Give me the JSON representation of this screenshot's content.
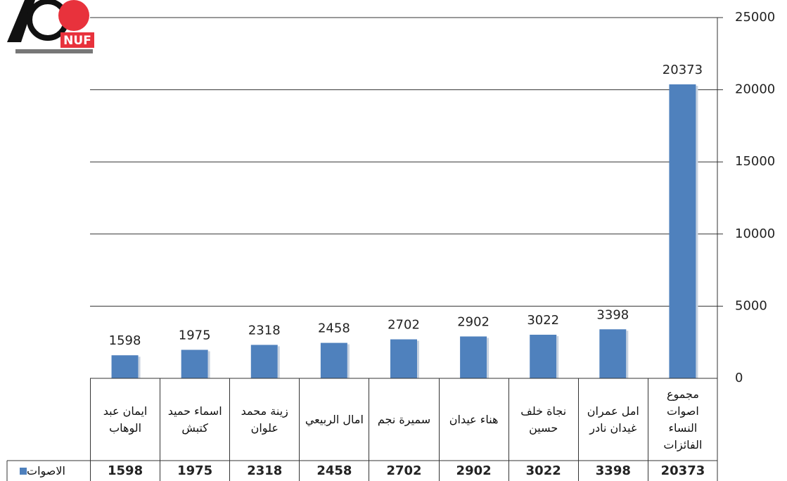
{
  "chart_data": {
    "type": "bar",
    "annotations": [
      "NUF"
    ],
    "categories": [
      "ايمان عبد الوهاب",
      "اسماء حميد كتبش",
      "زينة محمد علوان",
      "امال الربيعي",
      "سميرة نجم",
      "هناء عيدان",
      "نجاة خلف حسين",
      "امل عمران غيدان نادر",
      "مجموع اصوات النساء الفائزات"
    ],
    "series": [
      {
        "name": "الاصوات",
        "color": "#4f81bd",
        "values": [
          1598,
          1975,
          2318,
          2458,
          2702,
          2902,
          3022,
          3398,
          20373
        ]
      }
    ],
    "ylim": [
      0,
      25000
    ],
    "yticks": [
      0,
      5000,
      10000,
      15000,
      20000,
      25000
    ],
    "grid": true,
    "data_table": true
  }
}
